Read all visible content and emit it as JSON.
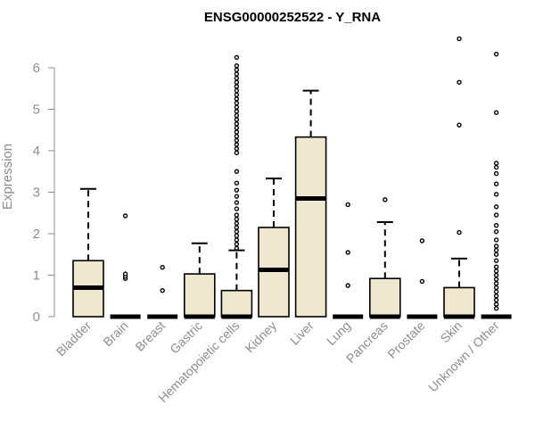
{
  "chart_data": {
    "type": "box",
    "title": "ENSG00000252522 - Y_RNA",
    "ylabel": "Expression",
    "xlabel": "",
    "ylim": [
      0,
      6.9
    ],
    "yticks": [
      0,
      1,
      2,
      3,
      4,
      5,
      6
    ],
    "grid": false,
    "box_fill": "#efe8d0",
    "box_stroke": "#000000",
    "axis_color": "#8c8c8c",
    "categories": [
      "Bladder",
      "Brain",
      "Breast",
      "Gastric",
      "Hematopoietic cells",
      "Kidney",
      "Liver",
      "Lung",
      "Pancreas",
      "Prostate",
      "Skin",
      "Unknown / Other"
    ],
    "boxes": [
      {
        "category": "Bladder",
        "whisker_low": 0,
        "q1": 0,
        "median": 0.7,
        "q3": 1.35,
        "whisker_high": 3.08,
        "outliers": []
      },
      {
        "category": "Brain",
        "whisker_low": 0,
        "q1": 0,
        "median": 0,
        "q3": 0,
        "whisker_high": 0,
        "outliers": [
          0.92,
          0.97,
          1.03,
          2.43
        ]
      },
      {
        "category": "Breast",
        "whisker_low": 0,
        "q1": 0,
        "median": 0,
        "q3": 0,
        "whisker_high": 0,
        "outliers": [
          0.63,
          1.19
        ]
      },
      {
        "category": "Gastric",
        "whisker_low": 0,
        "q1": 0,
        "median": 0,
        "q3": 1.03,
        "whisker_high": 1.77,
        "outliers": []
      },
      {
        "category": "Hematopoietic cells",
        "whisker_low": 0,
        "q1": 0,
        "median": 0,
        "q3": 0.63,
        "whisker_high": 1.6,
        "outliers": [
          1.65,
          1.75,
          1.85,
          1.95,
          2.05,
          2.15,
          2.25,
          2.35,
          2.45,
          2.6,
          2.75,
          2.9,
          3.05,
          3.22,
          3.5,
          3.95,
          4.05,
          4.15,
          4.25,
          4.35,
          4.45,
          4.55,
          4.65,
          4.75,
          4.85,
          4.95,
          5.05,
          5.15,
          5.25,
          5.35,
          5.45,
          5.55,
          5.65,
          5.75,
          5.85,
          5.95,
          6.05,
          6.25
        ]
      },
      {
        "category": "Kidney",
        "whisker_low": 0,
        "q1": 0,
        "median": 1.13,
        "q3": 2.15,
        "whisker_high": 3.33,
        "outliers": []
      },
      {
        "category": "Liver",
        "whisker_low": 0,
        "q1": 0,
        "median": 2.85,
        "q3": 4.33,
        "whisker_high": 5.45,
        "outliers": []
      },
      {
        "category": "Lung",
        "whisker_low": 0,
        "q1": 0,
        "median": 0,
        "q3": 0,
        "whisker_high": 0,
        "outliers": [
          0.75,
          1.55,
          2.7
        ]
      },
      {
        "category": "Pancreas",
        "whisker_low": 0,
        "q1": 0,
        "median": 0,
        "q3": 0.92,
        "whisker_high": 2.28,
        "outliers": [
          2.82
        ]
      },
      {
        "category": "Prostate",
        "whisker_low": 0,
        "q1": 0,
        "median": 0,
        "q3": 0,
        "whisker_high": 0,
        "outliers": [
          0.85,
          1.83
        ]
      },
      {
        "category": "Skin",
        "whisker_low": 0,
        "q1": 0,
        "median": 0,
        "q3": 0.7,
        "whisker_high": 1.4,
        "outliers": [
          2.03,
          4.62,
          5.65,
          6.7
        ]
      },
      {
        "category": "Unknown / Other",
        "whisker_low": 0,
        "q1": 0,
        "median": 0,
        "q3": 0,
        "whisker_high": 0,
        "outliers": [
          0.2,
          0.3,
          0.4,
          0.5,
          0.6,
          0.7,
          0.8,
          0.9,
          1.0,
          1.1,
          1.2,
          1.35,
          1.5,
          1.6,
          1.7,
          1.85,
          2.05,
          2.2,
          2.45,
          2.65,
          2.95,
          3.2,
          3.45,
          3.6,
          3.7,
          4.92,
          6.33
        ]
      }
    ]
  }
}
